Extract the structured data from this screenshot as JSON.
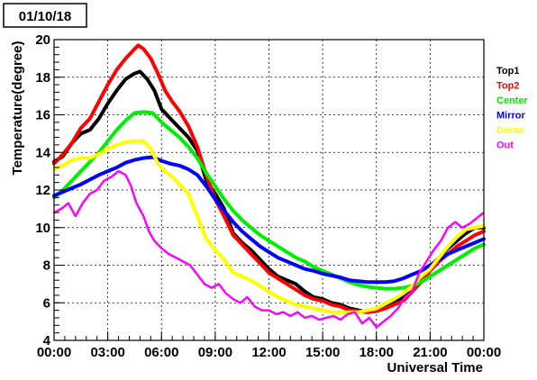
{
  "date_label": "01/10/18",
  "chart_data": {
    "type": "line",
    "title": "",
    "xlabel": "Universal Time",
    "ylabel": "Temperature(degree)",
    "xlim": [
      0,
      24
    ],
    "ylim": [
      4,
      20
    ],
    "grid": true,
    "legend_position": "right",
    "x_ticks": [
      0,
      3,
      6,
      9,
      12,
      15,
      18,
      21,
      24
    ],
    "x_tick_labels": [
      "00:00",
      "03:00",
      "06:00",
      "09:00",
      "12:00",
      "15:00",
      "18:00",
      "21:00",
      "00:00"
    ],
    "y_ticks": [
      4,
      6,
      8,
      10,
      12,
      14,
      16,
      18,
      20
    ],
    "y_tick_labels": [
      "4",
      "6",
      "8",
      "10",
      "12",
      "14",
      "16",
      "18",
      "20"
    ],
    "series": [
      {
        "name": "Top1",
        "color": "#000000",
        "points": [
          [
            0,
            13.5
          ],
          [
            0.5,
            13.8
          ],
          [
            1,
            14.5
          ],
          [
            1.5,
            15
          ],
          [
            2,
            15.2
          ],
          [
            2.5,
            15.8
          ],
          [
            3,
            16.6
          ],
          [
            3.5,
            17.3
          ],
          [
            4,
            17.9
          ],
          [
            4.5,
            18.2
          ],
          [
            4.8,
            18.3
          ],
          [
            5.2,
            17.9
          ],
          [
            5.6,
            17.3
          ],
          [
            6,
            16.3
          ],
          [
            6.5,
            15.8
          ],
          [
            7,
            15.3
          ],
          [
            7.5,
            14.8
          ],
          [
            8,
            14.1
          ],
          [
            8.5,
            12.5
          ],
          [
            9,
            11.8
          ],
          [
            9.5,
            11
          ],
          [
            10,
            9.7
          ],
          [
            10.5,
            9.2
          ],
          [
            11,
            8.8
          ],
          [
            11.5,
            8.3
          ],
          [
            12,
            7.8
          ],
          [
            12.5,
            7.4
          ],
          [
            13,
            7.2
          ],
          [
            13.5,
            7
          ],
          [
            14,
            6.6
          ],
          [
            14.5,
            6.3
          ],
          [
            15,
            6.2
          ],
          [
            15.5,
            6
          ],
          [
            16,
            5.9
          ],
          [
            16.5,
            5.7
          ],
          [
            17,
            5.6
          ],
          [
            17.5,
            5.5
          ],
          [
            18,
            5.6
          ],
          [
            18.5,
            5.8
          ],
          [
            19,
            6
          ],
          [
            19.5,
            6.3
          ],
          [
            20,
            6.6
          ],
          [
            20.5,
            7.2
          ],
          [
            21,
            7.9
          ],
          [
            21.5,
            8.4
          ],
          [
            22,
            8.9
          ],
          [
            22.5,
            9.3
          ],
          [
            23,
            9.7
          ],
          [
            23.5,
            10
          ],
          [
            24,
            10
          ]
        ]
      },
      {
        "name": "Top2",
        "color": "#ff0000",
        "points": [
          [
            0,
            13.4
          ],
          [
            0.5,
            13.9
          ],
          [
            1,
            14.5
          ],
          [
            1.5,
            15.3
          ],
          [
            2,
            15.8
          ],
          [
            2.5,
            16.7
          ],
          [
            3,
            17.6
          ],
          [
            3.5,
            18.4
          ],
          [
            4,
            19
          ],
          [
            4.5,
            19.5
          ],
          [
            4.7,
            19.7
          ],
          [
            5,
            19.5
          ],
          [
            5.4,
            19
          ],
          [
            5.8,
            18.2
          ],
          [
            6.2,
            17.3
          ],
          [
            6.6,
            16.7
          ],
          [
            7,
            16.2
          ],
          [
            7.5,
            15.4
          ],
          [
            8,
            14.3
          ],
          [
            8.5,
            12.8
          ],
          [
            9,
            11.5
          ],
          [
            9.5,
            10.6
          ],
          [
            10,
            9.6
          ],
          [
            10.5,
            9.1
          ],
          [
            11,
            8.6
          ],
          [
            11.5,
            8.1
          ],
          [
            12,
            7.6
          ],
          [
            12.5,
            7.3
          ],
          [
            13,
            7
          ],
          [
            13.5,
            6.7
          ],
          [
            14,
            6.4
          ],
          [
            14.5,
            6.2
          ],
          [
            15,
            6.1
          ],
          [
            15.5,
            5.9
          ],
          [
            16,
            5.8
          ],
          [
            16.5,
            5.6
          ],
          [
            17,
            5.55
          ],
          [
            17.5,
            5.5
          ],
          [
            18,
            5.55
          ],
          [
            18.5,
            5.7
          ],
          [
            19,
            5.9
          ],
          [
            19.5,
            6.1
          ],
          [
            20,
            6.6
          ],
          [
            20.5,
            7.1
          ],
          [
            21,
            7.7
          ],
          [
            21.5,
            8.2
          ],
          [
            22,
            8.6
          ],
          [
            22.5,
            9
          ],
          [
            23,
            9.3
          ],
          [
            23.5,
            9.6
          ],
          [
            24,
            9.8
          ]
        ]
      },
      {
        "name": "Center",
        "color": "#00ee00",
        "points": [
          [
            0,
            11.6
          ],
          [
            0.5,
            12
          ],
          [
            1,
            12.5
          ],
          [
            1.5,
            13
          ],
          [
            2,
            13.5
          ],
          [
            2.5,
            14
          ],
          [
            3,
            14.6
          ],
          [
            3.5,
            15.2
          ],
          [
            4,
            15.7
          ],
          [
            4.5,
            16.1
          ],
          [
            5,
            16.15
          ],
          [
            5.5,
            16.1
          ],
          [
            6,
            15.6
          ],
          [
            6.5,
            15.2
          ],
          [
            7,
            14.8
          ],
          [
            7.5,
            14.3
          ],
          [
            8,
            13.7
          ],
          [
            8.5,
            12.9
          ],
          [
            9,
            12.2
          ],
          [
            9.5,
            11.5
          ],
          [
            10,
            10.9
          ],
          [
            10.5,
            10.4
          ],
          [
            11,
            10
          ],
          [
            11.5,
            9.6
          ],
          [
            12,
            9.3
          ],
          [
            12.5,
            9
          ],
          [
            13,
            8.7
          ],
          [
            13.5,
            8.4
          ],
          [
            14,
            8.2
          ],
          [
            14.5,
            7.9
          ],
          [
            15,
            7.7
          ],
          [
            15.5,
            7.5
          ],
          [
            16,
            7.3
          ],
          [
            16.5,
            7.1
          ],
          [
            17,
            6.95
          ],
          [
            17.5,
            6.85
          ],
          [
            18,
            6.8
          ],
          [
            18.5,
            6.75
          ],
          [
            19,
            6.75
          ],
          [
            19.5,
            6.8
          ],
          [
            20,
            6.9
          ],
          [
            20.5,
            7.1
          ],
          [
            21,
            7.4
          ],
          [
            21.5,
            7.7
          ],
          [
            22,
            8
          ],
          [
            22.5,
            8.3
          ],
          [
            23,
            8.6
          ],
          [
            23.5,
            8.9
          ],
          [
            24,
            9.1
          ]
        ]
      },
      {
        "name": "Mirror",
        "color": "#0000ff",
        "points": [
          [
            0,
            11.7
          ],
          [
            0.5,
            11.9
          ],
          [
            1,
            12.1
          ],
          [
            1.5,
            12.3
          ],
          [
            2,
            12.55
          ],
          [
            2.5,
            12.8
          ],
          [
            3,
            13
          ],
          [
            3.5,
            13.2
          ],
          [
            4,
            13.45
          ],
          [
            4.5,
            13.6
          ],
          [
            5,
            13.7
          ],
          [
            5.5,
            13.75
          ],
          [
            6,
            13.55
          ],
          [
            6.5,
            13.4
          ],
          [
            7,
            13.3
          ],
          [
            7.5,
            13.1
          ],
          [
            8,
            12.8
          ],
          [
            8.5,
            12.2
          ],
          [
            9,
            11.5
          ],
          [
            9.5,
            10.9
          ],
          [
            10,
            10.3
          ],
          [
            10.5,
            9.8
          ],
          [
            11,
            9.4
          ],
          [
            11.5,
            9
          ],
          [
            12,
            8.7
          ],
          [
            12.5,
            8.4
          ],
          [
            13,
            8.2
          ],
          [
            13.5,
            8
          ],
          [
            14,
            7.8
          ],
          [
            14.5,
            7.7
          ],
          [
            15,
            7.55
          ],
          [
            15.5,
            7.45
          ],
          [
            16,
            7.35
          ],
          [
            16.5,
            7.2
          ],
          [
            17,
            7.15
          ],
          [
            17.5,
            7.1
          ],
          [
            18,
            7.1
          ],
          [
            18.5,
            7.1
          ],
          [
            19,
            7.15
          ],
          [
            19.5,
            7.3
          ],
          [
            20,
            7.5
          ],
          [
            20.5,
            7.7
          ],
          [
            21,
            8
          ],
          [
            21.5,
            8.3
          ],
          [
            22,
            8.6
          ],
          [
            22.5,
            8.8
          ],
          [
            23,
            9
          ],
          [
            23.5,
            9.2
          ],
          [
            24,
            9.4
          ]
        ]
      },
      {
        "name": "Dome",
        "color": "#ffff00",
        "points": [
          [
            0,
            13.1
          ],
          [
            0.5,
            13.3
          ],
          [
            1,
            13.6
          ],
          [
            1.5,
            13.7
          ],
          [
            2,
            13.7
          ],
          [
            2.5,
            13.9
          ],
          [
            3,
            14.2
          ],
          [
            3.5,
            14.4
          ],
          [
            4,
            14.55
          ],
          [
            4.5,
            14.6
          ],
          [
            5,
            14.6
          ],
          [
            5.4,
            14.2
          ],
          [
            5.8,
            13.4
          ],
          [
            6.2,
            13
          ],
          [
            6.6,
            12.7
          ],
          [
            7,
            12.3
          ],
          [
            7.5,
            11.8
          ],
          [
            8,
            10.6
          ],
          [
            8.5,
            9.4
          ],
          [
            9,
            8.8
          ],
          [
            9.5,
            8.3
          ],
          [
            10,
            7.6
          ],
          [
            10.5,
            7.4
          ],
          [
            11,
            7.2
          ],
          [
            11.5,
            6.9
          ],
          [
            12,
            6.6
          ],
          [
            12.5,
            6.3
          ],
          [
            13,
            6.1
          ],
          [
            13.5,
            5.9
          ],
          [
            14,
            5.8
          ],
          [
            14.5,
            5.7
          ],
          [
            15,
            5.6
          ],
          [
            15.5,
            5.5
          ],
          [
            16,
            5.5
          ],
          [
            16.5,
            5.5
          ],
          [
            17,
            5.5
          ],
          [
            17.5,
            5.6
          ],
          [
            18,
            5.7
          ],
          [
            18.5,
            5.95
          ],
          [
            19,
            6.2
          ],
          [
            19.5,
            6.5
          ],
          [
            20,
            6.9
          ],
          [
            20.5,
            7.4
          ],
          [
            21,
            7.8
          ],
          [
            21.5,
            8.4
          ],
          [
            22,
            9
          ],
          [
            22.5,
            9.5
          ],
          [
            23,
            9.9
          ],
          [
            23.5,
            10
          ],
          [
            24,
            10.1
          ]
        ]
      },
      {
        "name": "Out",
        "color": "#ff00ff",
        "points": [
          [
            0,
            10.8
          ],
          [
            0.4,
            11
          ],
          [
            0.8,
            11.3
          ],
          [
            1.2,
            10.6
          ],
          [
            1.6,
            11.3
          ],
          [
            2,
            11.8
          ],
          [
            2.4,
            12
          ],
          [
            2.8,
            12.5
          ],
          [
            3.2,
            12.7
          ],
          [
            3.6,
            13
          ],
          [
            4,
            12.8
          ],
          [
            4.3,
            12.2
          ],
          [
            4.6,
            11.3
          ],
          [
            5,
            10.6
          ],
          [
            5.3,
            9.8
          ],
          [
            5.6,
            9.3
          ],
          [
            6,
            8.9
          ],
          [
            6.4,
            8.6
          ],
          [
            6.8,
            8.4
          ],
          [
            7.2,
            8.2
          ],
          [
            7.6,
            8
          ],
          [
            8,
            7.5
          ],
          [
            8.4,
            7
          ],
          [
            8.8,
            6.8
          ],
          [
            9.2,
            7
          ],
          [
            9.6,
            6.5
          ],
          [
            10,
            6.2
          ],
          [
            10.4,
            6
          ],
          [
            10.8,
            6.3
          ],
          [
            11.2,
            5.8
          ],
          [
            11.6,
            5.6
          ],
          [
            12,
            5.6
          ],
          [
            12.4,
            5.4
          ],
          [
            12.8,
            5.5
          ],
          [
            13.2,
            5.3
          ],
          [
            13.6,
            5.5
          ],
          [
            14,
            5.2
          ],
          [
            14.4,
            5.3
          ],
          [
            14.8,
            5.1
          ],
          [
            15.2,
            5.2
          ],
          [
            15.6,
            5.3
          ],
          [
            16,
            5.1
          ],
          [
            16.4,
            5.4
          ],
          [
            16.8,
            5.5
          ],
          [
            17.2,
            4.9
          ],
          [
            17.6,
            5.2
          ],
          [
            18,
            4.7
          ],
          [
            18.4,
            5
          ],
          [
            18.8,
            5.3
          ],
          [
            19.2,
            5.7
          ],
          [
            19.6,
            6.3
          ],
          [
            20,
            6.6
          ],
          [
            20.4,
            7.6
          ],
          [
            20.8,
            8.2
          ],
          [
            21.2,
            8.8
          ],
          [
            21.6,
            9.3
          ],
          [
            22,
            10
          ],
          [
            22.4,
            10.3
          ],
          [
            22.8,
            10
          ],
          [
            23.2,
            10.2
          ],
          [
            23.6,
            10.5
          ],
          [
            24,
            10.8
          ]
        ]
      }
    ]
  }
}
